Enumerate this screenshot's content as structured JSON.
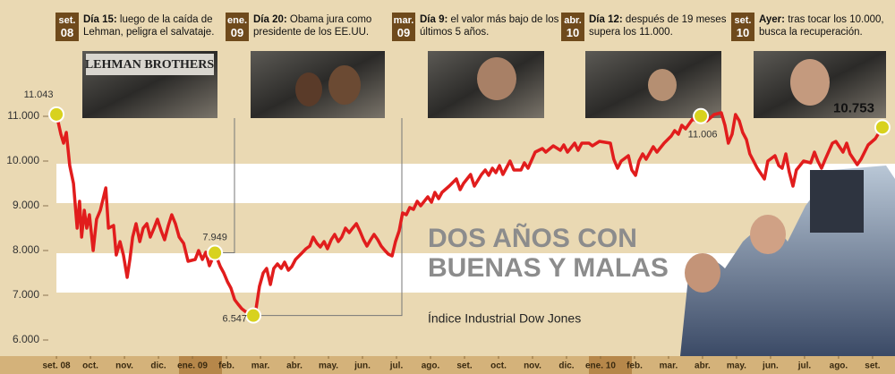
{
  "chart_data": {
    "type": "line",
    "title": [
      "DOS AÑOS CON",
      "BUENAS Y MALAS"
    ],
    "subtitle": "Índice Industrial Dow Jones",
    "color": "#e11d1d",
    "xlim": [
      -1.66,
      24.66
    ],
    "ylim": [
      5600,
      11500
    ],
    "xticks": [
      {
        "value": 0,
        "label": "set. 08"
      },
      {
        "value": 1,
        "label": "oct."
      },
      {
        "value": 2,
        "label": "nov."
      },
      {
        "value": 3,
        "label": "dic."
      },
      {
        "value": 4,
        "label": "ene. 09"
      },
      {
        "value": 5,
        "label": "feb."
      },
      {
        "value": 6,
        "label": "mar."
      },
      {
        "value": 7,
        "label": "abr."
      },
      {
        "value": 8,
        "label": "may."
      },
      {
        "value": 9,
        "label": "jun."
      },
      {
        "value": 10,
        "label": "jul."
      },
      {
        "value": 11,
        "label": "ago."
      },
      {
        "value": 12,
        "label": "set."
      },
      {
        "value": 13,
        "label": "oct."
      },
      {
        "value": 14,
        "label": "nov."
      },
      {
        "value": 15,
        "label": "dic."
      },
      {
        "value": 16,
        "label": "ene. 10"
      },
      {
        "value": 17,
        "label": "feb."
      },
      {
        "value": 18,
        "label": "mar."
      },
      {
        "value": 19,
        "label": "abr."
      },
      {
        "value": 20,
        "label": "may."
      },
      {
        "value": 21,
        "label": "jun."
      },
      {
        "value": 22,
        "label": "jul."
      },
      {
        "value": 23,
        "label": "ago."
      },
      {
        "value": 24,
        "label": "set."
      }
    ],
    "yticks": [
      {
        "value": 11000,
        "label": "11.000"
      },
      {
        "value": 10000,
        "label": "10.000"
      },
      {
        "value": 9000,
        "label": "9.000"
      },
      {
        "value": 8000,
        "label": "8.000"
      },
      {
        "value": 7000,
        "label": "7.000"
      },
      {
        "value": 6000,
        "label": "6.000"
      }
    ],
    "x": [
      0,
      0.13,
      0.21,
      0.29,
      0.39,
      0.5,
      0.61,
      0.68,
      0.74,
      0.82,
      0.89,
      0.97,
      1.08,
      1.18,
      1.29,
      1.45,
      1.53,
      1.68,
      1.76,
      1.87,
      1.97,
      2.08,
      2.16,
      2.24,
      2.34,
      2.45,
      2.55,
      2.66,
      2.76,
      2.87,
      2.97,
      3.08,
      3.18,
      3.29,
      3.39,
      3.5,
      3.61,
      3.74,
      3.87,
      4.08,
      4.18,
      4.29,
      4.39,
      4.5,
      4.66,
      4.82,
      4.92,
      5.03,
      5.13,
      5.24,
      5.34,
      5.45,
      5.55,
      5.66,
      5.79,
      5.87,
      5.97,
      6.08,
      6.18,
      6.29,
      6.39,
      6.5,
      6.61,
      6.71,
      6.82,
      6.92,
      7.03,
      7.24,
      7.34,
      7.45,
      7.55,
      7.66,
      7.76,
      7.87,
      7.97,
      8.08,
      8.18,
      8.29,
      8.39,
      8.5,
      8.61,
      8.71,
      8.82,
      8.92,
      9.03,
      9.13,
      9.24,
      9.34,
      9.45,
      9.55,
      9.66,
      9.76,
      9.87,
      9.97,
      10.08,
      10.18,
      10.29,
      10.39,
      10.5,
      10.61,
      10.71,
      10.92,
      11.03,
      11.13,
      11.24,
      11.34,
      11.55,
      11.76,
      11.87,
      11.97,
      12.18,
      12.29,
      12.5,
      12.61,
      12.71,
      12.82,
      12.92,
      13.03,
      13.13,
      13.34,
      13.45,
      13.66,
      13.76,
      13.87,
      14.08,
      14.29,
      14.39,
      14.61,
      14.82,
      14.92,
      15.03,
      15.24,
      15.34,
      15.45,
      15.66,
      15.76,
      15.97,
      16.29,
      16.39,
      16.5,
      16.61,
      16.82,
      16.92,
      17.03,
      17.13,
      17.24,
      17.34,
      17.55,
      17.66,
      17.87,
      18.08,
      18.18,
      18.29,
      18.39,
      18.5,
      18.71,
      18.82,
      18.95,
      19.13,
      19.34,
      19.55,
      19.66,
      19.76,
      19.87,
      19.97,
      20.08,
      20.18,
      20.29,
      20.39,
      20.61,
      20.82,
      20.92,
      21.13,
      21.24,
      21.34,
      21.45,
      21.55,
      21.66,
      21.76,
      21.97,
      22.18,
      22.29,
      22.39,
      22.5,
      22.61,
      22.82,
      22.92,
      23.13,
      23.24,
      23.34,
      23.55,
      23.66,
      23.87,
      24.08,
      24.29
    ],
    "values": [
      11043,
      10600,
      10400,
      10640,
      9900,
      9500,
      8500,
      9100,
      8300,
      8900,
      8500,
      8800,
      8000,
      8700,
      8900,
      9400,
      8500,
      8560,
      7900,
      8200,
      7900,
      7400,
      7800,
      8300,
      8600,
      8200,
      8500,
      8600,
      8300,
      8500,
      8700,
      8440,
      8240,
      8560,
      8800,
      8600,
      8300,
      8160,
      7760,
      7800,
      8000,
      7800,
      7960,
      7660,
      7949,
      7640,
      7500,
      7300,
      7160,
      6900,
      6800,
      6700,
      6640,
      6600,
      6547,
      6700,
      7200,
      7500,
      7600,
      7240,
      7600,
      7700,
      7600,
      7740,
      7560,
      7640,
      7800,
      7960,
      8040,
      8100,
      8300,
      8160,
      8080,
      8200,
      8040,
      8240,
      8360,
      8200,
      8300,
      8500,
      8400,
      8500,
      8600,
      8440,
      8240,
      8100,
      8240,
      8360,
      8240,
      8100,
      8000,
      7920,
      7880,
      8200,
      8440,
      8840,
      8800,
      8960,
      8920,
      9100,
      9000,
      9200,
      9080,
      9300,
      9160,
      9300,
      9440,
      9600,
      9360,
      9500,
      9700,
      9440,
      9700,
      9800,
      9680,
      9840,
      9740,
      9900,
      9700,
      10000,
      9800,
      9800,
      9960,
      9840,
      10200,
      10280,
      10200,
      10340,
      10240,
      10360,
      10200,
      10400,
      10240,
      10400,
      10400,
      10340,
      10440,
      10400,
      10040,
      9840,
      10000,
      10120,
      9800,
      9680,
      10000,
      10160,
      10040,
      10320,
      10200,
      10400,
      10560,
      10680,
      10600,
      10800,
      10720,
      10940,
      10900,
      11006,
      10900,
      11040,
      11080,
      10800,
      10400,
      10600,
      11040,
      10900,
      10640,
      10480,
      10160,
      9840,
      9600,
      10000,
      10120,
      9900,
      9840,
      10160,
      9760,
      9440,
      9800,
      10000,
      9960,
      10200,
      10000,
      9840,
      10040,
      10400,
      10440,
      10200,
      10400,
      10160,
      9920,
      10040,
      10360,
      10500,
      10753
    ],
    "highlights": [
      {
        "x": 0,
        "y": 11043,
        "label": "11.043"
      },
      {
        "x": 4.66,
        "y": 7949,
        "label": "7.949"
      },
      {
        "x": 5.79,
        "y": 6547,
        "label": "6.547"
      },
      {
        "x": 18.95,
        "y": 11006,
        "label": "11.006"
      },
      {
        "x": 24.29,
        "y": 10753,
        "label": "10.753"
      }
    ]
  },
  "events": [
    {
      "month": "set.",
      "year": "08",
      "lead": "Día 15:",
      "text": "luego de la caída de Lehman, peligra el salvataje.",
      "photo_text": "LEHMAN BROTHERS"
    },
    {
      "month": "ene.",
      "year": "09",
      "lead": "Día 20:",
      "text": "Obama jura como presidente de los EE.UU."
    },
    {
      "month": "mar.",
      "year": "09",
      "lead": "Día 9:",
      "text": "el valor más bajo de los últimos 5 años."
    },
    {
      "month": "abr.",
      "year": "10",
      "lead": "Día 12:",
      "text": "después de 19 meses supera los 11.000."
    },
    {
      "month": "set.",
      "year": "10",
      "lead": "Ayer:",
      "text": "tras tocar los 10.000, busca la recuperación."
    }
  ]
}
